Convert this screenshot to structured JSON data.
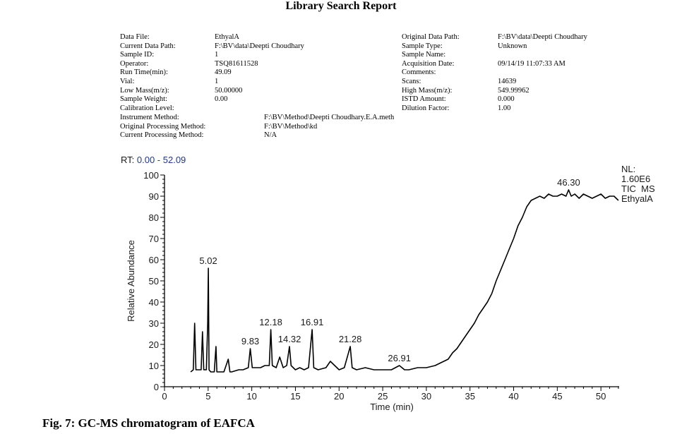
{
  "report": {
    "title": "Library Search Report",
    "left_labels": [
      "Data File:",
      "Current Data Path:",
      "Sample ID:",
      "Operator:",
      "Run Time(min):",
      "Vial:",
      "Low Mass(m/z):",
      "Sample Weight:",
      "Calibration Level:"
    ],
    "left_values": [
      "EthyalA",
      "F:\\BV\\data\\Deepti Choudhary",
      "1",
      "TSQ81611528",
      "49.09",
      "1",
      "50.00000",
      "0.00",
      ""
    ],
    "right_labels": [
      "Original Data Path:",
      "Sample Type:",
      "Sample Name:",
      "Acquisition Date:",
      "Comments:",
      "Scans:",
      "High Mass(m/z):",
      "ISTD Amount:",
      "Dilution Factor:"
    ],
    "right_values": [
      "F:\\BV\\data\\Deepti Choudhary",
      "Unknown",
      "",
      "09/14/19 11:07:33 AM",
      "",
      "14639",
      "549.99962",
      "0.000",
      "1.00"
    ],
    "bottom_labels": [
      "Instrument Method:",
      "Original Processing Method:",
      "Current Processing Method:"
    ],
    "bottom_values": [
      "F:\\BV\\Method\\Deepti Choudhary.E.A.meth",
      "F:\\BV\\Method\\kd",
      "N/A"
    ]
  },
  "rt_label": "RT:",
  "rt_range": "0.00 - 52.09",
  "info": {
    "nl_label": "NL:",
    "nl_value": "1.60E6",
    "trace": "TIC  MS",
    "file": "EthyalA"
  },
  "caption": "Fig. 7: GC-MS chromatogram of EAFCA",
  "chart_data": {
    "type": "line",
    "xlabel": "Time (min)",
    "ylabel": "Relative Abundance",
    "xlim": [
      0,
      52.09
    ],
    "ylim": [
      0,
      100
    ],
    "xticks": [
      0,
      5,
      10,
      15,
      20,
      25,
      30,
      35,
      40,
      45,
      50
    ],
    "yticks": [
      0,
      10,
      20,
      30,
      40,
      50,
      60,
      70,
      80,
      90,
      100
    ],
    "grid": false,
    "line_color": "#000000",
    "series": [
      {
        "x": [
          3.0,
          3.3,
          3.45,
          3.6,
          3.8,
          4.2,
          4.35,
          4.5,
          4.8,
          4.95,
          5.02,
          5.1,
          5.3,
          5.7,
          5.9,
          6.0,
          6.2,
          6.8,
          7.3,
          7.5,
          7.7,
          8.5,
          9.0,
          9.6,
          9.83,
          10.05,
          10.5,
          11.0,
          11.5,
          12.0,
          12.18,
          12.35,
          12.8,
          13.2,
          13.6,
          14.0,
          14.32,
          14.5,
          15.0,
          15.5,
          16.0,
          16.5,
          16.91,
          17.1,
          17.6,
          18.5,
          19.0,
          20.0,
          20.6,
          21.28,
          21.5,
          22.0,
          23.0,
          24.0,
          25.0,
          26.0,
          26.91,
          27.5,
          28.0,
          29.0,
          30.0,
          31.0,
          31.5,
          32.0,
          32.5,
          33.0,
          33.5,
          34.0,
          34.5,
          35.0,
          35.5,
          36.0,
          36.5,
          37.0,
          37.5,
          38.0,
          38.5,
          39.0,
          39.5,
          40.0,
          40.5,
          41.0,
          41.5,
          42.0,
          42.5,
          43.0,
          43.5,
          44.0,
          44.5,
          45.0,
          45.5,
          46.0,
          46.3,
          46.6,
          47.0,
          47.5,
          48.0,
          48.5,
          49.0,
          49.5,
          50.0,
          50.5,
          51.0,
          51.5,
          52.0
        ],
        "y": [
          7,
          8,
          30,
          8,
          8,
          8,
          26,
          8,
          8,
          30,
          56,
          8,
          7,
          7,
          19,
          7,
          7,
          7,
          13,
          7,
          7,
          8,
          8,
          9,
          18,
          9,
          9,
          9,
          10,
          10,
          27,
          10,
          9,
          14,
          9,
          10,
          19,
          10,
          8,
          9,
          8,
          9,
          27,
          9,
          8,
          9,
          12,
          8,
          9,
          19,
          9,
          8,
          9,
          8,
          8,
          8,
          10,
          8,
          8,
          9,
          9,
          10,
          11,
          12,
          13,
          16,
          18,
          21,
          24,
          27,
          30,
          34,
          37,
          40,
          44,
          50,
          55,
          60,
          65,
          70,
          76,
          80,
          85,
          88,
          89,
          90,
          89,
          91,
          90,
          90,
          91,
          90,
          93,
          90,
          91,
          89,
          91,
          90,
          89,
          90,
          91,
          89,
          90,
          90,
          88
        ]
      }
    ],
    "peak_labels": [
      {
        "text": "5.02",
        "x": 5.02,
        "y": 56
      },
      {
        "text": "9.83",
        "x": 9.83,
        "y": 18
      },
      {
        "text": "12.18",
        "x": 12.18,
        "y": 27
      },
      {
        "text": "14.32",
        "x": 14.32,
        "y": 19
      },
      {
        "text": "16.91",
        "x": 16.91,
        "y": 27
      },
      {
        "text": "21.28",
        "x": 21.28,
        "y": 19
      },
      {
        "text": "26.91",
        "x": 26.91,
        "y": 10
      },
      {
        "text": "46.30",
        "x": 46.3,
        "y": 93
      }
    ]
  }
}
